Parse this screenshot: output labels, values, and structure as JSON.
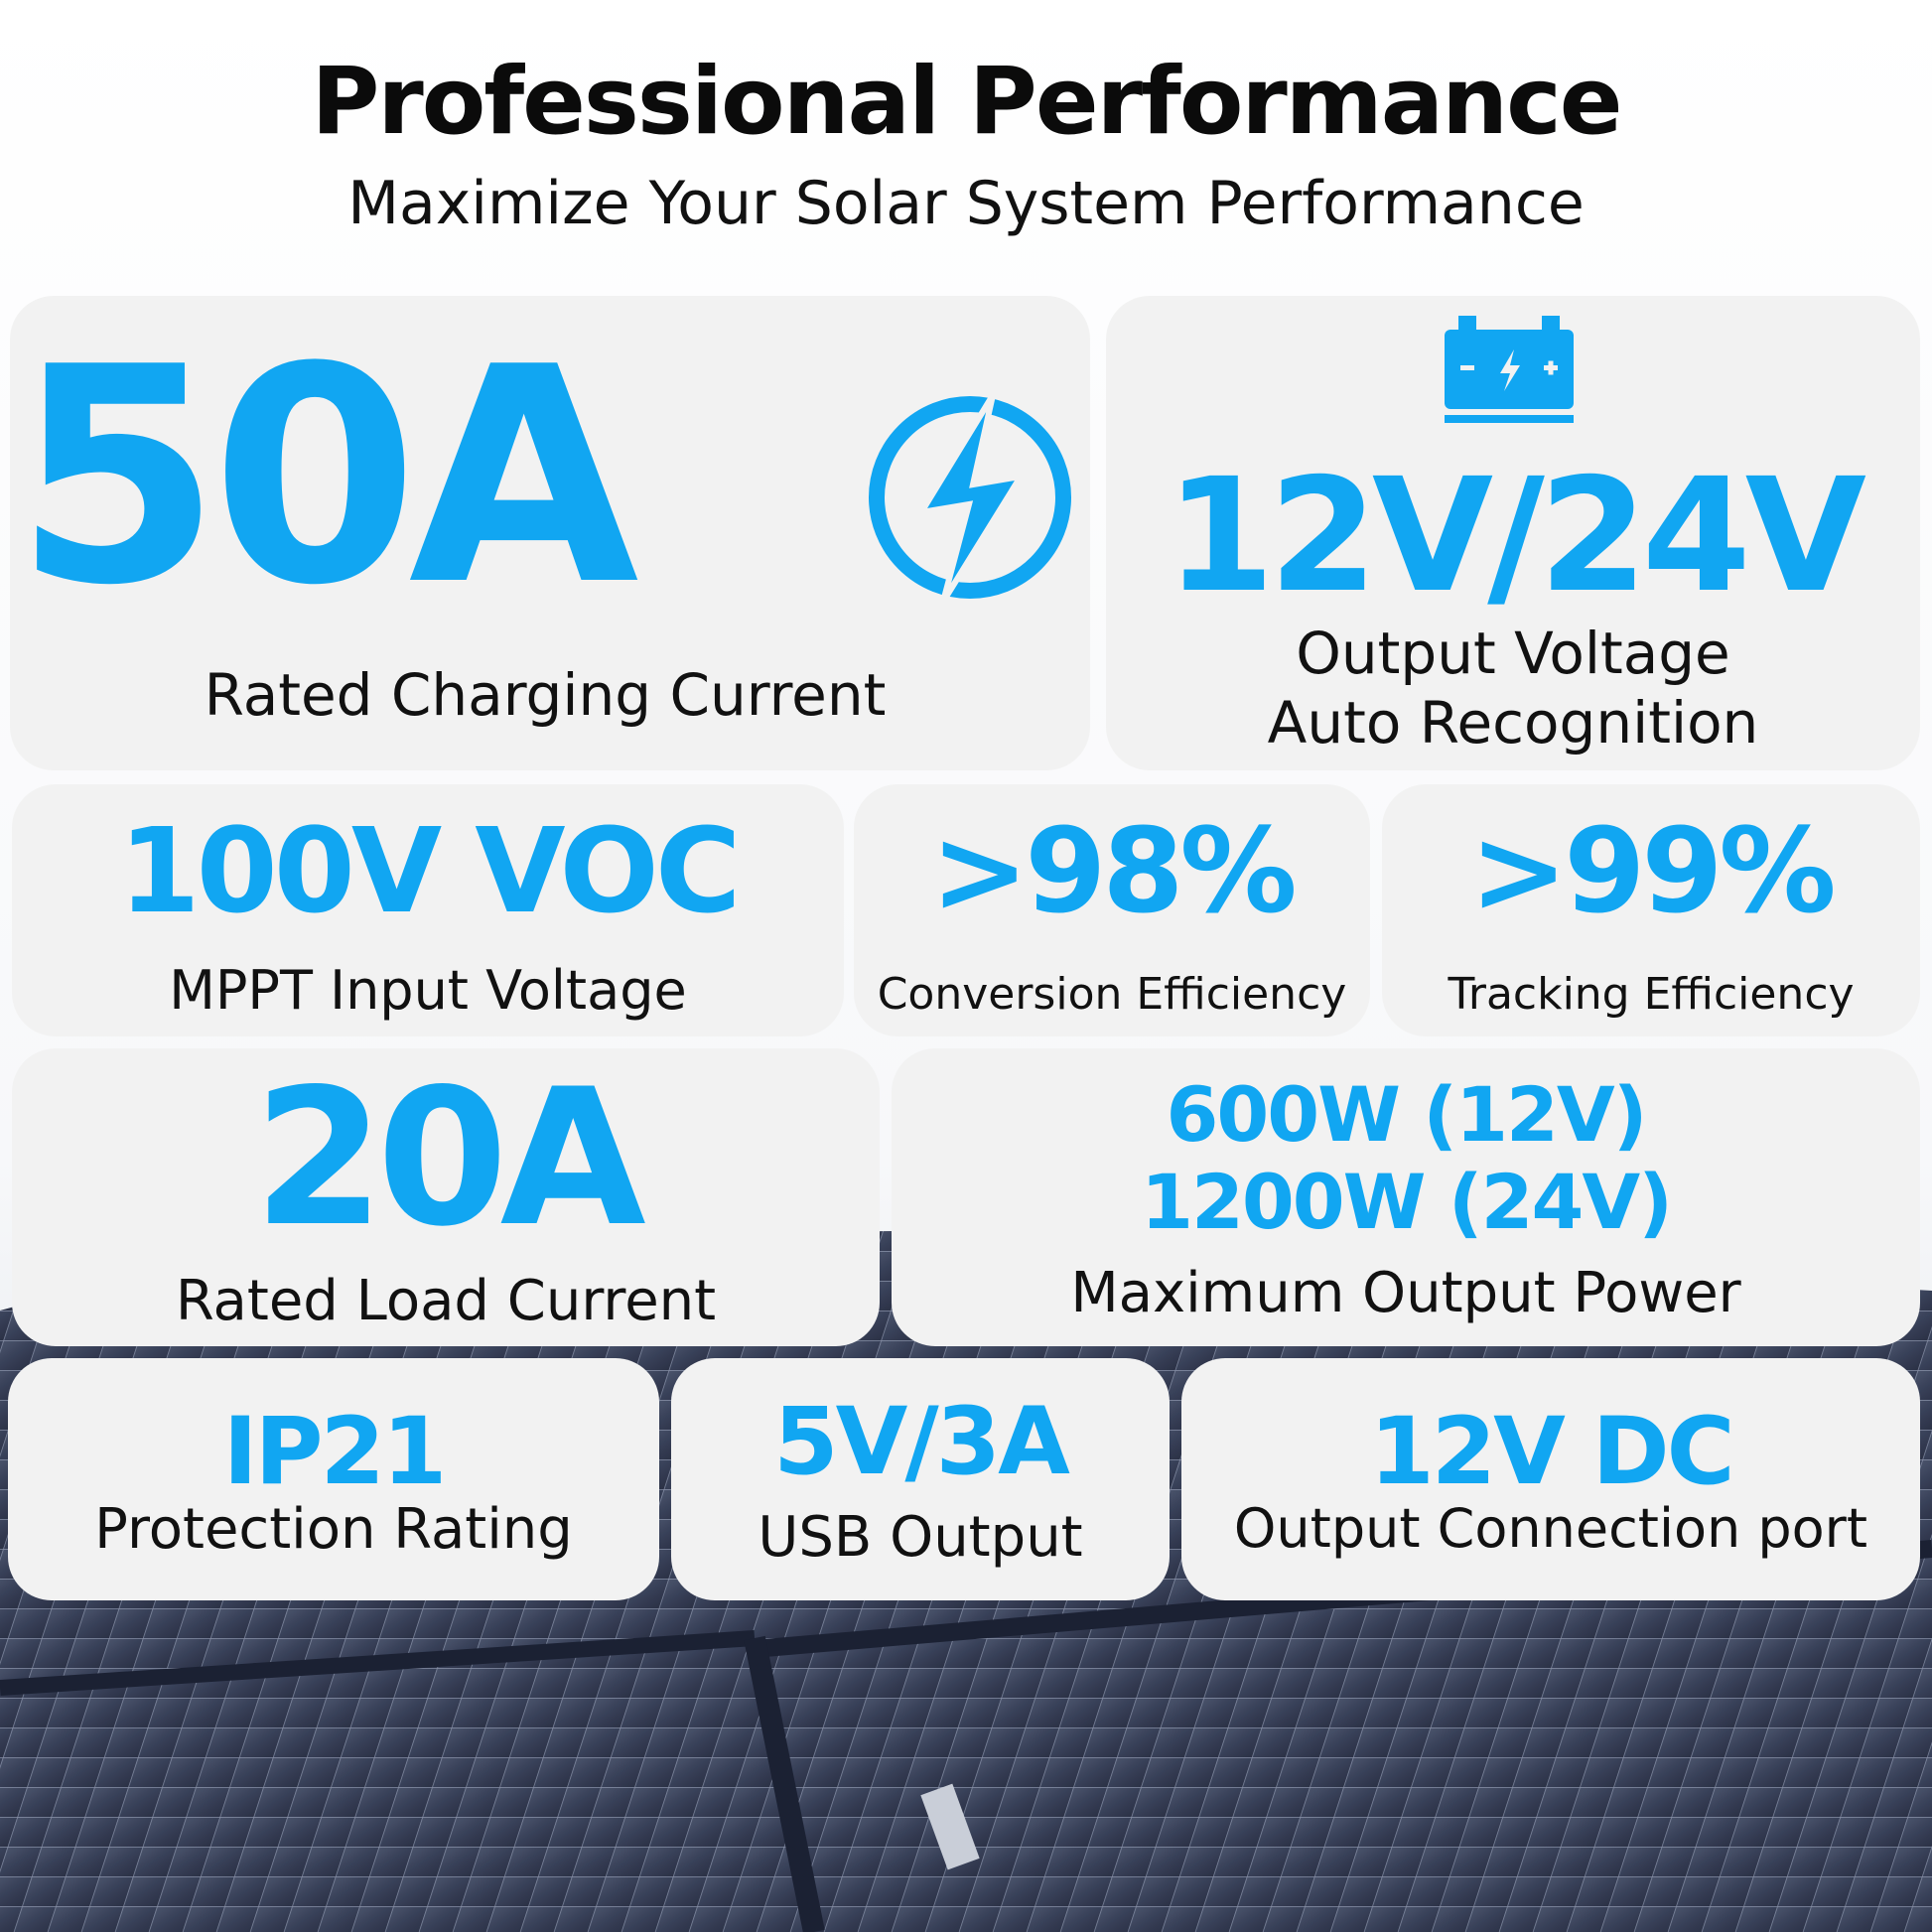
{
  "header": {
    "title": "Professional Performance",
    "subtitle": "Maximize Your Solar System Performance"
  },
  "colors": {
    "accent": "#11a6f2",
    "card": "#f2f2f2",
    "text": "#111111"
  },
  "icons": {
    "charging": "lightning-bolt-circle-icon",
    "battery": "battery-icon"
  },
  "specs": {
    "charging_current": {
      "value": "50A",
      "label": "Rated Charging Current"
    },
    "output_voltage": {
      "value": "12V/24V",
      "label_line1": "Output Voltage",
      "label_line2": "Auto Recognition"
    },
    "input_voltage": {
      "value": "100V VOC",
      "label": "MPPT Input Voltage"
    },
    "conversion_efficiency": {
      "value": ">98%",
      "label": "Conversion Efficiency"
    },
    "tracking_efficiency": {
      "value": ">99%",
      "label": "Tracking Efficiency"
    },
    "load_current": {
      "value": "20A",
      "label": "Rated Load Current"
    },
    "output_power": {
      "value_line1": "600W (12V)",
      "value_line2": "1200W (24V)",
      "label": "Maximum Output Power"
    },
    "protection": {
      "value": "IP21",
      "label": "Protection Rating"
    },
    "usb": {
      "value": "5V/3A",
      "label": "USB Output"
    },
    "dc_port": {
      "value": "12V DC",
      "label": "Output Connection port"
    }
  }
}
